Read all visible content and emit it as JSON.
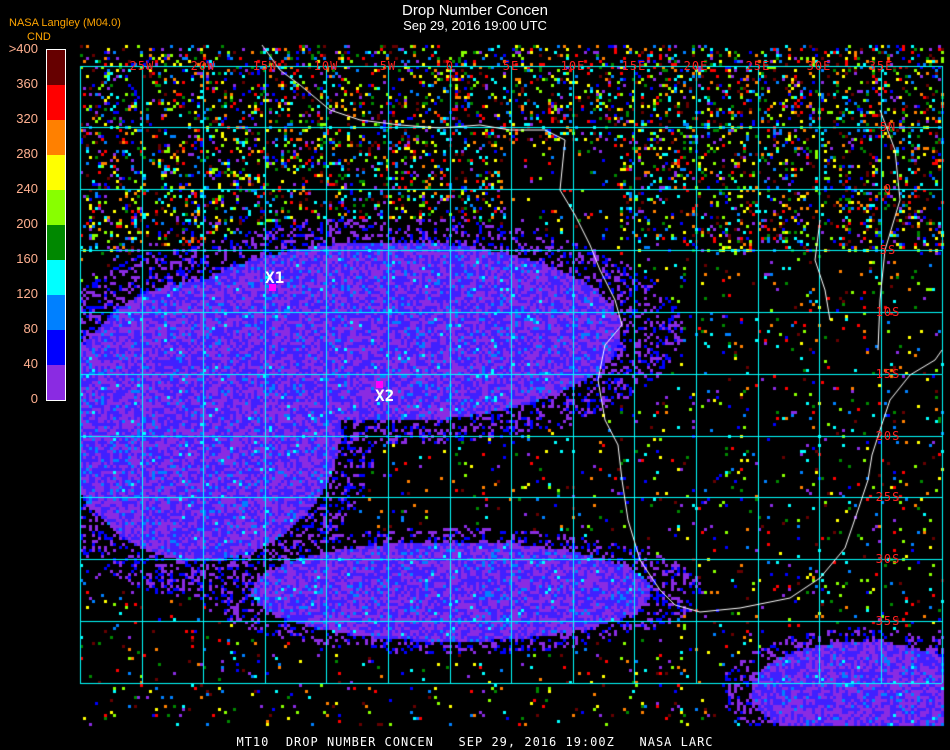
{
  "header": {
    "title": "Drop Number Concen",
    "subtitle": "Sep 29, 2016 19:00 UTC",
    "agency": "NASA Langley (M04.0)"
  },
  "legend": {
    "unit": "CND",
    "ticks": [
      ">400",
      "360",
      "320",
      "280",
      "240",
      "200",
      "160",
      "120",
      "80",
      "40",
      "0"
    ],
    "colors": [
      "#8a2be2",
      "#0000ff",
      "#0080ff",
      "#00ffff",
      "#008800",
      "#88ff00",
      "#ffff00",
      "#ff8000",
      "#ff0000",
      "#660000"
    ]
  },
  "map": {
    "lon_labels": [
      "25W",
      "20W",
      "15W",
      "10W",
      "5W",
      "0",
      "5E",
      "10E",
      "15E",
      "20E",
      "25E",
      "30E",
      "35E"
    ],
    "lat_labels": [
      "5N",
      "0",
      "5S",
      "10S",
      "15S",
      "20S",
      "25S",
      "30S",
      "35S"
    ],
    "grid_color": "#00ffff",
    "coastline_color": "#ffffff",
    "markers": [
      {
        "label": "X1",
        "color": "#ff00ff"
      },
      {
        "label": "X2",
        "color": "#ff00ff"
      }
    ]
  },
  "footer": "MT10  DROP NUMBER CONCEN   SEP 29, 2016 19:00Z   NASA LARC"
}
